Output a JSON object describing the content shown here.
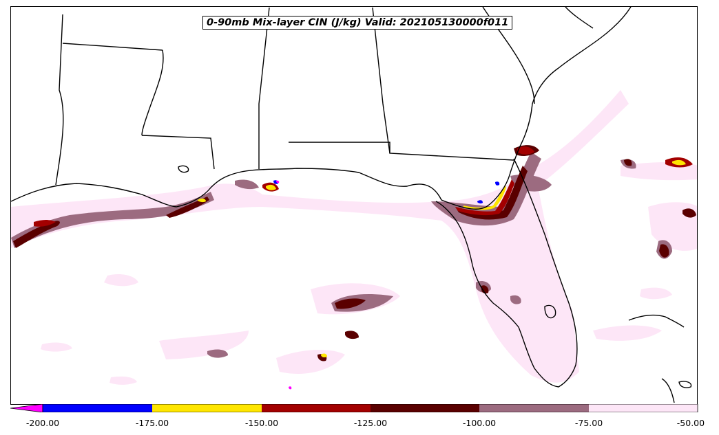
{
  "map": {
    "title": "0-90mb Mix-layer CIN (J/kg) Valid: 202105130000f011",
    "region": "Gulf of Mexico / US Southeast",
    "colors": {
      "border": "#000000",
      "background": "#ffffff"
    }
  },
  "colorbar": {
    "levels": [
      {
        "value": "-200.00",
        "color": "#0000ff"
      },
      {
        "value": "-175.00",
        "color": "#ffe600"
      },
      {
        "value": "-150.00",
        "color": "#a30000"
      },
      {
        "value": "-125.00",
        "color": "#5a0000"
      },
      {
        "value": "-100.00",
        "color": "#9c6b80"
      },
      {
        "value": "-75.00",
        "color": "#fde6f7"
      },
      {
        "value": "-50.00",
        "color": ""
      }
    ],
    "extend_color": "#ff00ff"
  }
}
